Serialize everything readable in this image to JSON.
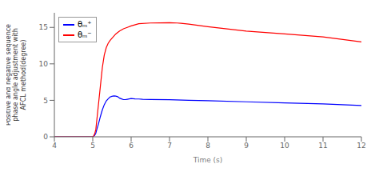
{
  "chart_data": {
    "type": "line",
    "xlabel": "Time (s)",
    "ylabel": "Positive and negative sequence\nphase angle adjustment with\nAFCL method(degree)",
    "xlim": [
      4,
      12
    ],
    "ylim": [
      0,
      17
    ],
    "xticks": [
      4,
      5,
      6,
      7,
      8,
      9,
      10,
      11,
      12
    ],
    "yticks": [
      0,
      5,
      10,
      15
    ],
    "grid": false,
    "legend": "upper left",
    "series": [
      {
        "name": "θₘ⁺",
        "color": "blue",
        "x": [
          4.0,
          5.0,
          5.02,
          5.05,
          5.08,
          5.1,
          5.15,
          5.2,
          5.25,
          5.3,
          5.35,
          5.4,
          5.45,
          5.5,
          5.55,
          5.6,
          5.65,
          5.7,
          5.75,
          5.8,
          5.85,
          5.9,
          6.0,
          6.1,
          6.2,
          6.3,
          6.5,
          7.0,
          7.5,
          8.0,
          9.0,
          10.0,
          11.0,
          12.0
        ],
        "values": [
          0.0,
          0.0,
          0.05,
          0.2,
          0.5,
          0.9,
          1.8,
          2.8,
          3.7,
          4.4,
          4.9,
          5.2,
          5.45,
          5.55,
          5.6,
          5.58,
          5.5,
          5.3,
          5.2,
          5.1,
          5.1,
          5.15,
          5.25,
          5.2,
          5.18,
          5.15,
          5.12,
          5.08,
          5.0,
          4.95,
          4.8,
          4.65,
          4.5,
          4.3
        ]
      },
      {
        "name": "θₘ⁻",
        "color": "red",
        "x": [
          4.0,
          5.0,
          5.02,
          5.05,
          5.08,
          5.1,
          5.15,
          5.2,
          5.25,
          5.3,
          5.35,
          5.4,
          5.45,
          5.5,
          5.55,
          5.6,
          5.7,
          5.8,
          5.9,
          6.0,
          6.2,
          6.5,
          7.0,
          7.2,
          7.3,
          7.5,
          8.0,
          9.0,
          10.0,
          11.0,
          12.0
        ],
        "values": [
          0.0,
          0.0,
          0.1,
          0.4,
          1.0,
          2.0,
          4.5,
          7.0,
          9.5,
          11.2,
          12.2,
          12.8,
          13.2,
          13.5,
          13.8,
          14.1,
          14.5,
          14.8,
          15.0,
          15.2,
          15.5,
          15.6,
          15.65,
          15.6,
          15.55,
          15.45,
          15.1,
          14.5,
          14.1,
          13.7,
          13.0
        ]
      }
    ]
  }
}
